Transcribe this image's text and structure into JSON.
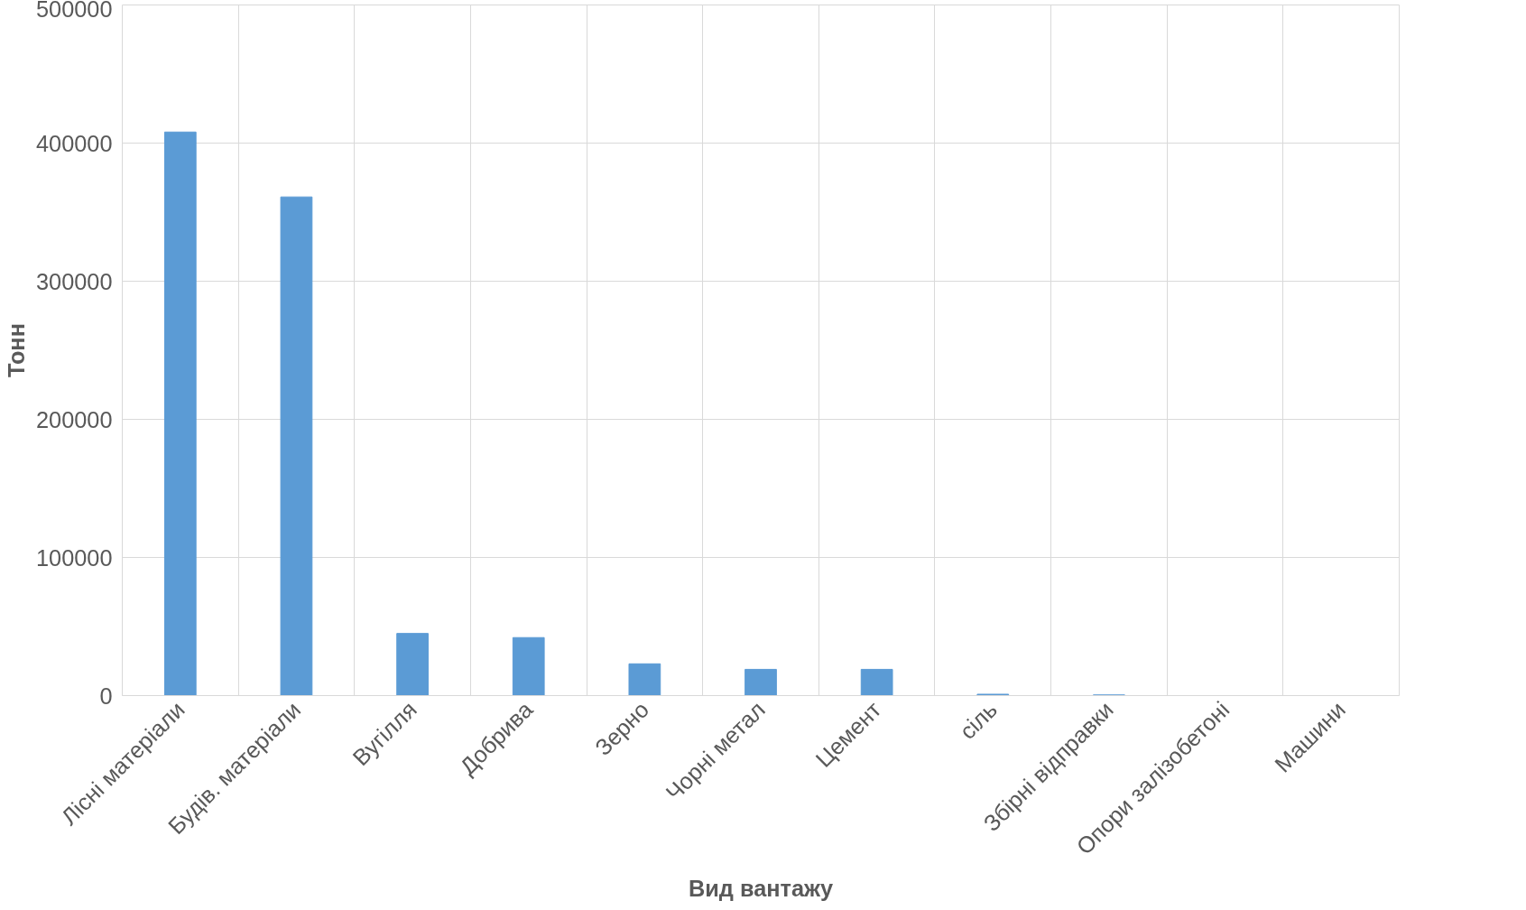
{
  "chart_data": {
    "type": "bar",
    "xlabel": "Вид вантажу",
    "ylabel": "Тонн",
    "categories": [
      "Лісні матеріали",
      "Будів. матеріали",
      "Вугілля",
      "Добрива",
      "Зерно",
      "Чорні метал",
      "Цемент",
      "сіль",
      "Збірні відправки",
      "Опори залізобетоні",
      "Машини"
    ],
    "values": [
      408000,
      361000,
      45000,
      42000,
      23000,
      19000,
      19000,
      1000,
      500,
      null,
      null
    ],
    "color": "#5b9bd5",
    "ylim": [
      0,
      500000
    ],
    "yticks": [
      0,
      100000,
      200000,
      300000,
      400000,
      500000
    ],
    "grid": true
  }
}
